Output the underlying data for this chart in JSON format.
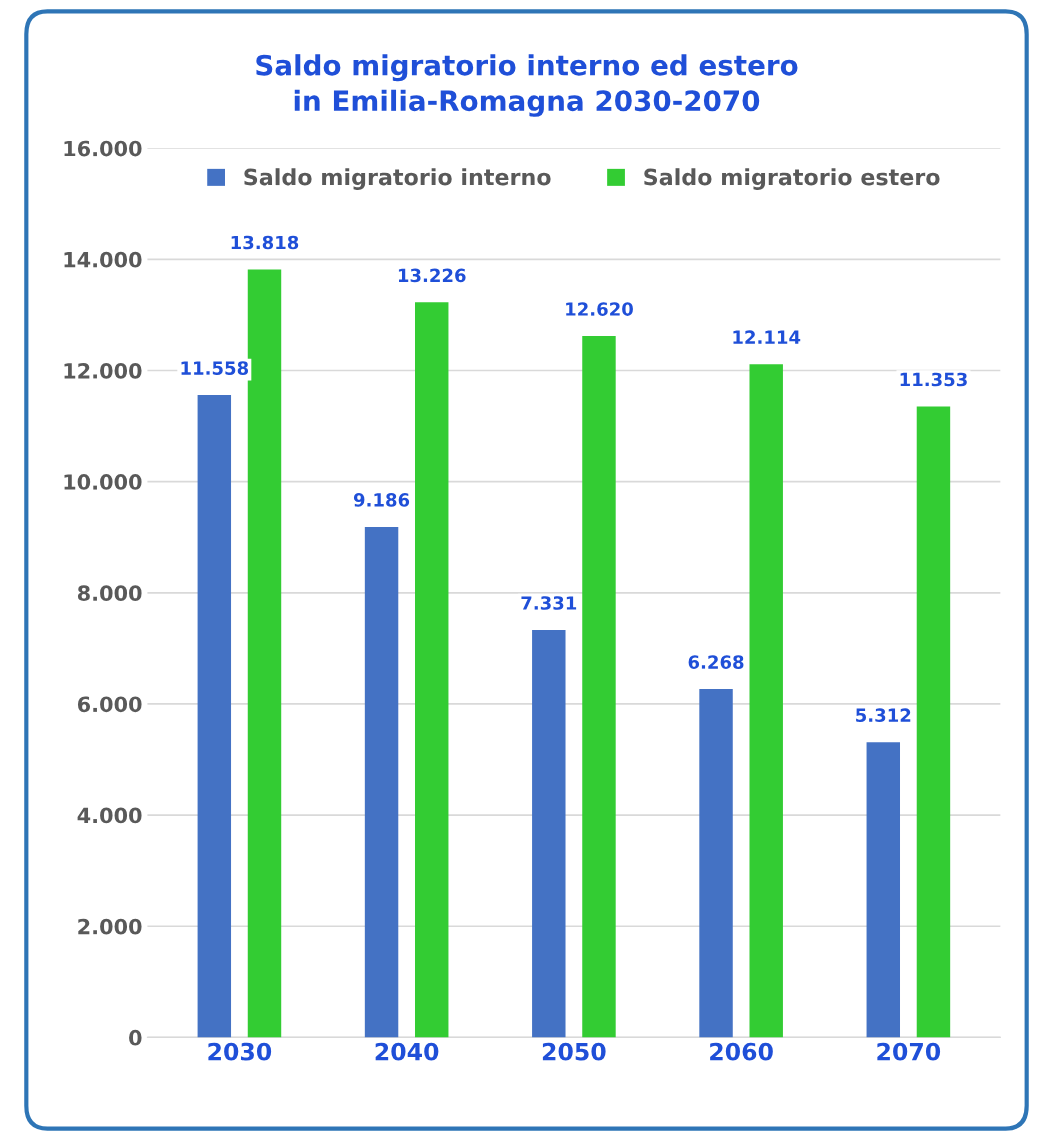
{
  "chart_data": {
    "type": "bar",
    "title": "Saldo migratorio interno ed estero\nin Emilia-Romagna 2030-2070",
    "categories": [
      "2030",
      "2040",
      "2050",
      "2060",
      "2070"
    ],
    "series": [
      {
        "name": "Saldo migratorio interno",
        "color": "#4472c4",
        "values": [
          11558,
          9186,
          7331,
          6268,
          5312
        ],
        "value_labels": [
          "11.558",
          "9.186",
          "7.331",
          "6.268",
          "5.312"
        ]
      },
      {
        "name": "Saldo migratorio estero",
        "color": "#33cc33",
        "values": [
          13818,
          13226,
          12620,
          12114,
          11353
        ],
        "value_labels": [
          "13.818",
          "13.226",
          "12.620",
          "12.114",
          "11.353"
        ]
      }
    ],
    "ylim": [
      0,
      16000
    ],
    "yticks": [
      {
        "value": 0,
        "label": "0"
      },
      {
        "value": 2000,
        "label": "2.000"
      },
      {
        "value": 4000,
        "label": "4.000"
      },
      {
        "value": 6000,
        "label": "6.000"
      },
      {
        "value": 8000,
        "label": "8.000"
      },
      {
        "value": 10000,
        "label": "10.000"
      },
      {
        "value": 12000,
        "label": "12.000"
      },
      {
        "value": 14000,
        "label": "14.000"
      },
      {
        "value": 16000,
        "label": "16.000"
      }
    ],
    "grid": "y",
    "legend": "top"
  }
}
